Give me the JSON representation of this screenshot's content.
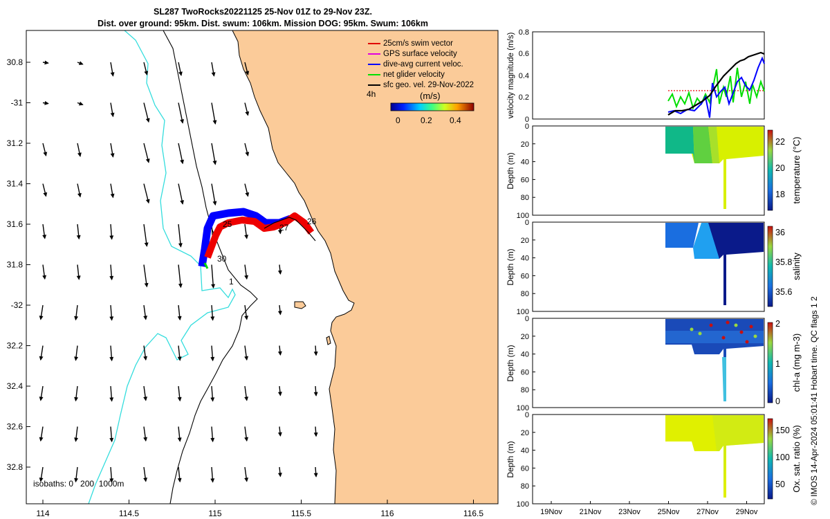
{
  "title": {
    "line1": "SL287 TwoRocks20221125 25-Nov 01Z to 29-Nov 23Z.",
    "line2": "Dist. over ground: 95km. Dist. swum: 106km. Mission DOG: 95km. Swum: 106km"
  },
  "map": {
    "lat_ticks": [
      "30.8",
      "-31",
      "31.2",
      "31.4",
      "31.6",
      "31.8",
      "-32",
      "32.2",
      "32.4",
      "32.6",
      "32.8"
    ],
    "lon_ticks": [
      "114",
      "114.5",
      "115",
      "115.5",
      "116",
      "116.5"
    ],
    "legend": [
      {
        "label": "25cm/s swim vector",
        "color": "#e00000"
      },
      {
        "label": "GPS surface velocity",
        "color": "#e000e0"
      },
      {
        "label": "dive-avg current veloc.",
        "color": "#0000ff"
      },
      {
        "label": "net glider velocity",
        "color": "#00e000"
      },
      {
        "label": "sfc geo. vel. 29-Nov-2022",
        "color": "#000000"
      }
    ],
    "time_label": "4h",
    "colorbar_unit": "(m/s)",
    "colorbar_ticks": [
      "0",
      "0.2",
      "0.4"
    ],
    "track_day_labels": [
      "25",
      "26",
      "27",
      "30",
      "1"
    ],
    "isobaths_label": "isobaths: 0   200  1000m",
    "colors": {
      "land": "#fbcb99",
      "isobath_200": "#000000",
      "isobath_1000": "#33dddd",
      "track_red": "#ee0000",
      "track_blue": "#0000ff"
    }
  },
  "panels": {
    "velocity": {
      "ylabel": "velocity magnitude (m/s)",
      "yticks": [
        "0",
        "0.2",
        "0.4",
        "0.6",
        "0.8"
      ],
      "series": [
        {
          "name": "net glider velocity",
          "color": "#00dd00"
        },
        {
          "name": "dive-avg current veloc.",
          "color": "#0000ff"
        },
        {
          "name": "sfc geo. vel.",
          "color": "#000000"
        }
      ]
    },
    "depth_yticks": [
      "0",
      "20",
      "40",
      "60",
      "80",
      "100"
    ],
    "depth_ylabel": "Depth (m)",
    "temperature": {
      "label": "temperature (°C)",
      "ticks": [
        "22",
        "20",
        "18"
      ]
    },
    "salinity": {
      "label": "salinity",
      "ticks": [
        "36",
        "35.8",
        "35.6"
      ]
    },
    "chla": {
      "label": "chl-a (mg m-3)",
      "ticks": [
        "2",
        "1",
        "0"
      ]
    },
    "oxygen": {
      "label": "Ox. sat. ratio (%)",
      "ticks": [
        "150",
        "100",
        "50"
      ]
    },
    "time_ticks": [
      "19Nov",
      "21Nov",
      "23Nov",
      "25Nov",
      "27Nov",
      "29Nov"
    ]
  },
  "credit": "© IMOS 14-Apr-2024 05:01:41 Hobart time. QC flags 1  2"
}
